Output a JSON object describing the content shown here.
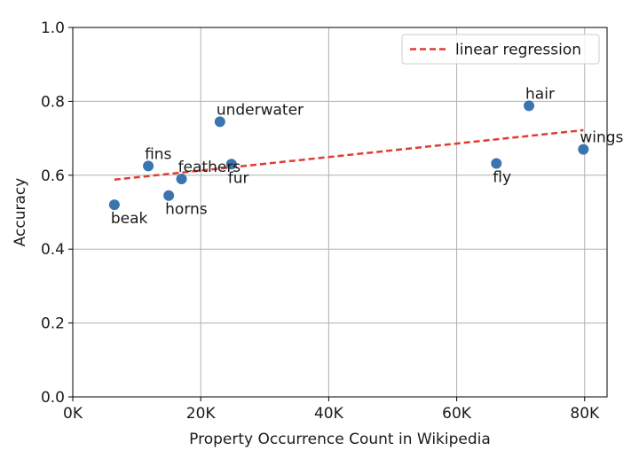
{
  "chart_data": {
    "type": "scatter",
    "title": "",
    "xlabel": "Property Occurrence Count in Wikipedia",
    "ylabel": "Accuracy",
    "xlim": [
      0,
      83500
    ],
    "ylim": [
      0,
      1.0
    ],
    "x_ticks": [
      0,
      20000,
      40000,
      60000,
      80000
    ],
    "x_tick_labels": [
      "0K",
      "20K",
      "40K",
      "60K",
      "80K"
    ],
    "y_ticks": [
      0.0,
      0.2,
      0.4,
      0.6,
      0.8,
      1.0
    ],
    "y_tick_labels": [
      "0.0",
      "0.2",
      "0.4",
      "0.6",
      "0.8",
      "1.0"
    ],
    "grid": true,
    "legend_position": "top-right",
    "points": [
      {
        "label": "beak",
        "x": 6500,
        "y": 0.52,
        "label_pos": "below"
      },
      {
        "label": "fins",
        "x": 11800,
        "y": 0.625,
        "label_pos": "above"
      },
      {
        "label": "horns",
        "x": 15000,
        "y": 0.545,
        "label_pos": "below"
      },
      {
        "label": "feathers",
        "x": 17000,
        "y": 0.59,
        "label_pos": "above"
      },
      {
        "label": "underwater",
        "x": 23000,
        "y": 0.745,
        "label_pos": "above"
      },
      {
        "label": "fur",
        "x": 24800,
        "y": 0.63,
        "label_pos": "below"
      },
      {
        "label": "fly",
        "x": 66200,
        "y": 0.632,
        "label_pos": "below"
      },
      {
        "label": "hair",
        "x": 71300,
        "y": 0.788,
        "label_pos": "above"
      },
      {
        "label": "wings",
        "x": 79800,
        "y": 0.67,
        "label_pos": "above"
      }
    ],
    "regression": {
      "name": "linear regression",
      "x": [
        6500,
        79800
      ],
      "y": [
        0.588,
        0.722
      ]
    },
    "colors": {
      "points": "#3b75af",
      "regression": "#e03c31",
      "grid": "#b0b0b0",
      "axis": "#000000"
    }
  }
}
